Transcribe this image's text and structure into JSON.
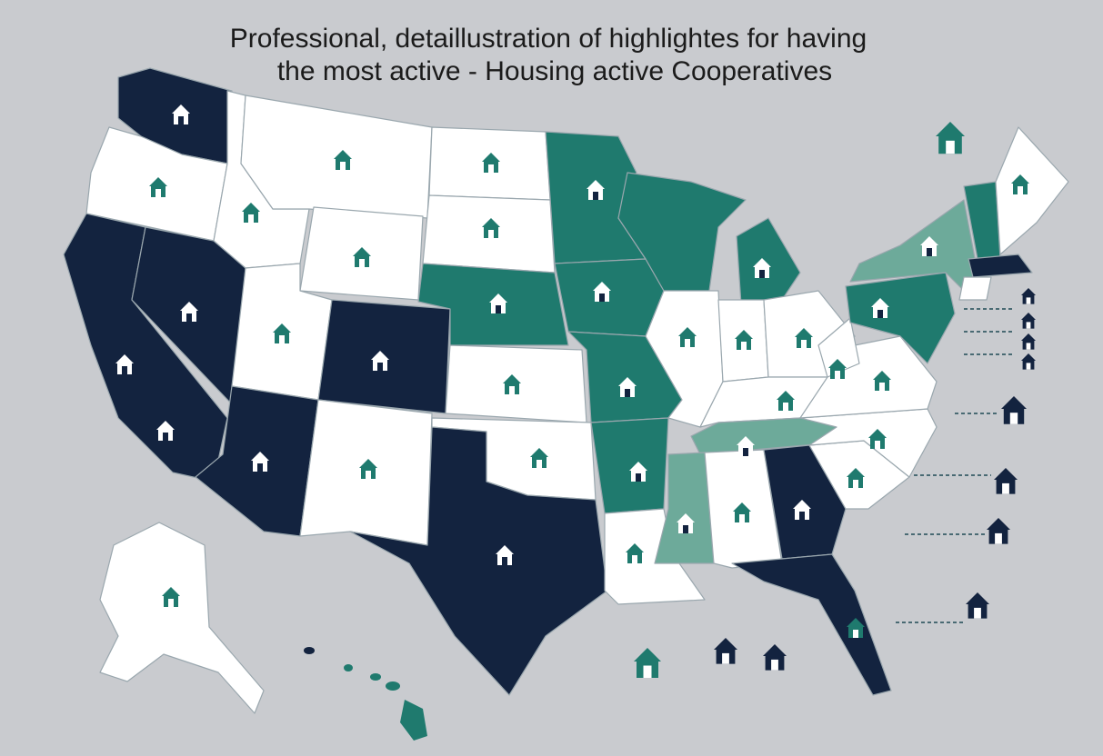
{
  "title": {
    "line1": "Professional, detaillustration of highlightes for having",
    "line2": "the most active - Housing active Cooperatives"
  }
}
